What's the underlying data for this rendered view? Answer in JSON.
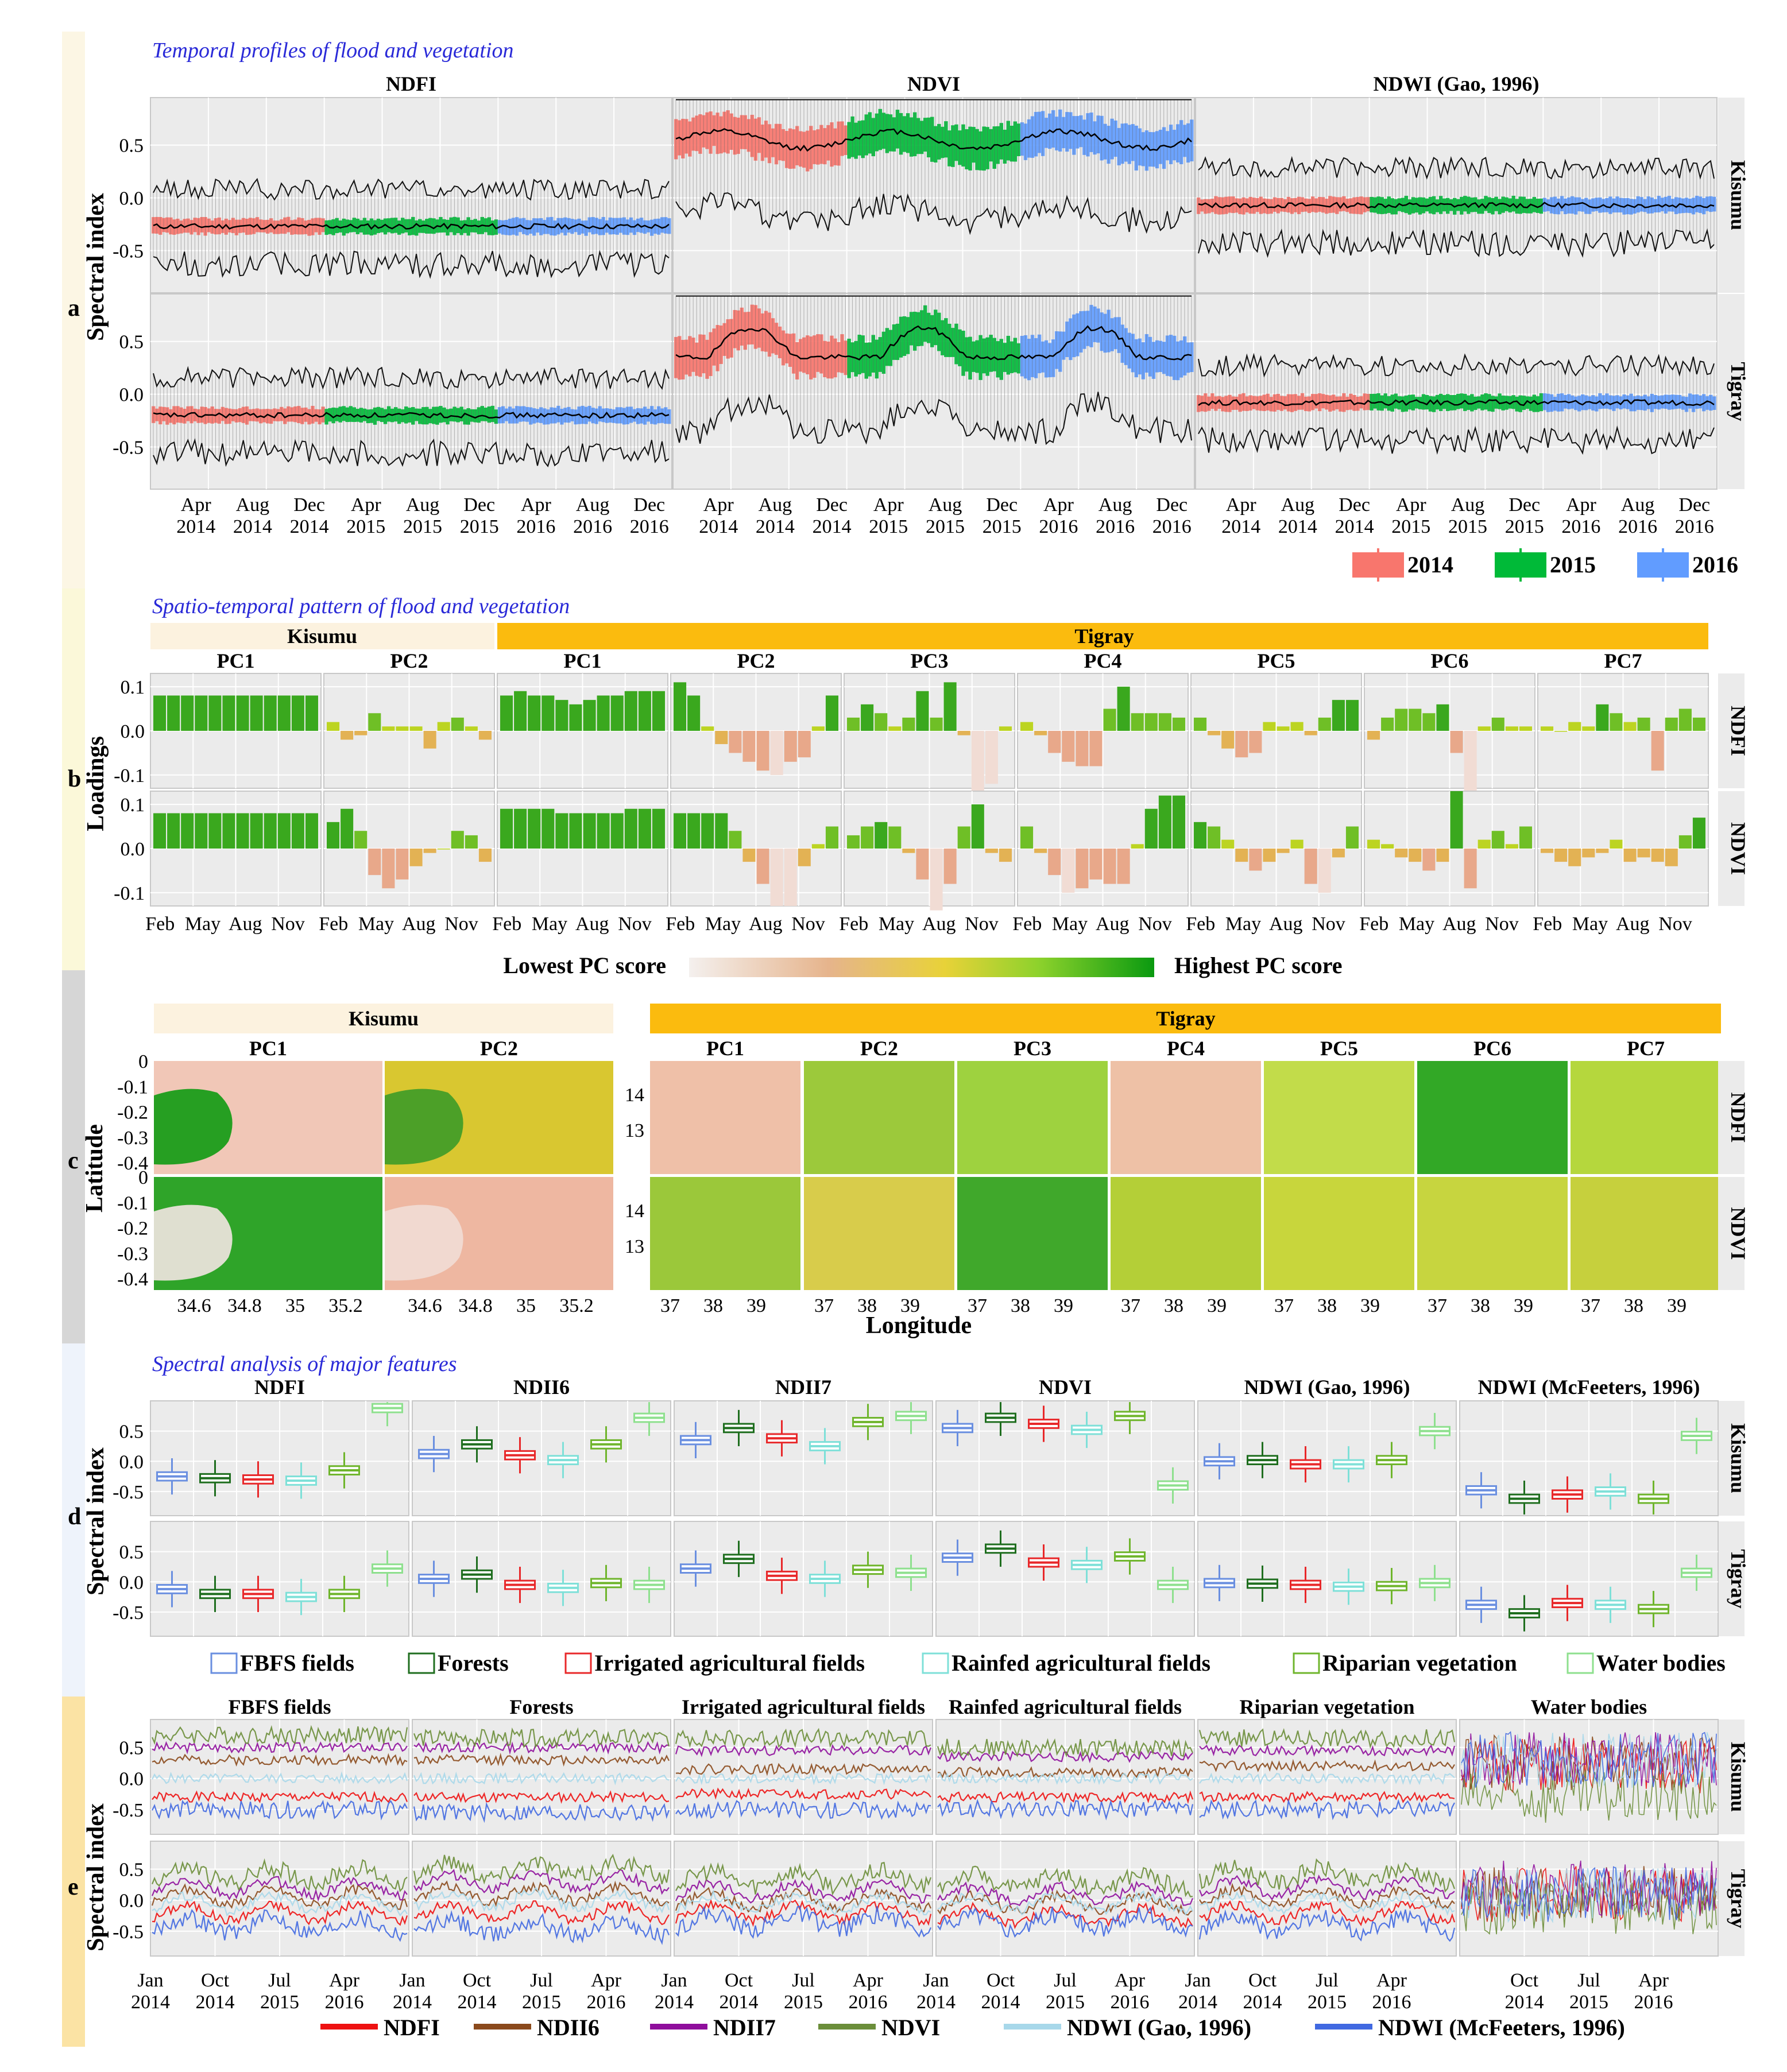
{
  "sections": {
    "a": {
      "letter": "a",
      "title": "Temporal profiles of flood and vegetation"
    },
    "b": {
      "letter": "b",
      "title": "Spatio-temporal pattern of flood and vegetation"
    },
    "c": {
      "letter": "c"
    },
    "d": {
      "letter": "d",
      "title": "Spectral analysis of major features"
    },
    "e": {
      "letter": "e"
    }
  },
  "labels": {
    "spectral_index": "Spectral index",
    "loadings": "Loadings",
    "latitude": "Latitude",
    "longitude": "Longitude",
    "lowest_pc": "Lowest PC score",
    "highest_pc": "Highest PC score",
    "kisumu": "Kisumu",
    "tigray": "Tigray"
  },
  "chart_data": [
    {
      "id": "a",
      "type": "line",
      "title": "Temporal profiles of flood and vegetation",
      "ylabel": "Spectral index",
      "panels": [
        "NDFI",
        "NDVI",
        "NDWI (Gao, 1996)"
      ],
      "rows": [
        "Kisumu",
        "Tigray"
      ],
      "x_ticks": [
        "Apr\n2014",
        "Aug\n2014",
        "Dec\n2014",
        "Apr\n2015",
        "Aug\n2015",
        "Dec\n2015",
        "Apr\n2016",
        "Aug\n2016",
        "Dec\n2016"
      ],
      "y_ticks": [
        0.5,
        0.0,
        -0.5
      ],
      "ylim": [
        -0.9,
        0.95
      ],
      "legend": [
        {
          "name": "2014",
          "color": "#f8766d"
        },
        {
          "name": "2015",
          "color": "#00ba38"
        },
        {
          "name": "2016",
          "color": "#619cff"
        }
      ],
      "median_levels": {
        "Kisumu": {
          "NDFI": -0.27,
          "NDVI": 0.55,
          "NDWI (Gao, 1996)": -0.07
        },
        "Tigray": {
          "NDFI": -0.2,
          "NDVI": 0.35,
          "NDWI (Gao, 1996)": -0.08
        }
      }
    },
    {
      "id": "b",
      "type": "bar",
      "title": "Spatio-temporal pattern of flood and vegetation",
      "ylabel": "Loadings",
      "groups": [
        {
          "name": "Kisumu",
          "pcs": [
            "PC1",
            "PC2"
          ]
        },
        {
          "name": "Tigray",
          "pcs": [
            "PC1",
            "PC2",
            "PC3",
            "PC4",
            "PC5",
            "PC6",
            "PC7"
          ]
        }
      ],
      "rows": [
        "NDFI",
        "NDVI"
      ],
      "x_ticks": [
        "Feb",
        "May",
        "Aug",
        "Nov"
      ],
      "y_ticks": [
        0.1,
        0.0,
        -0.1
      ],
      "ylim": [
        -0.13,
        0.13
      ],
      "series": [
        {
          "name": "Kisumu PC1 NDFI",
          "values": [
            0.08,
            0.08,
            0.08,
            0.08,
            0.08,
            0.08,
            0.08,
            0.08,
            0.08,
            0.08,
            0.08,
            0.08
          ]
        },
        {
          "name": "Kisumu PC2 NDFI",
          "values": [
            0.02,
            -0.02,
            -0.01,
            0.04,
            0.01,
            0.01,
            0.01,
            -0.04,
            0.02,
            0.03,
            0.01,
            -0.02
          ]
        },
        {
          "name": "Tigray PC1 NDFI",
          "values": [
            0.08,
            0.09,
            0.08,
            0.08,
            0.07,
            0.06,
            0.07,
            0.08,
            0.08,
            0.09,
            0.09,
            0.09
          ]
        },
        {
          "name": "Tigray PC2 NDFI",
          "values": [
            0.11,
            0.08,
            0.01,
            -0.03,
            -0.05,
            -0.07,
            -0.09,
            -0.1,
            -0.07,
            -0.06,
            0.01,
            0.08
          ]
        },
        {
          "name": "Tigray PC3 NDFI",
          "values": [
            0.03,
            0.06,
            0.04,
            0.01,
            0.03,
            0.09,
            0.03,
            0.11,
            -0.01,
            -0.14,
            -0.12,
            0.01
          ]
        },
        {
          "name": "Tigray PC4 NDFI",
          "values": [
            0.02,
            -0.01,
            -0.05,
            -0.07,
            -0.08,
            -0.08,
            0.05,
            0.1,
            0.04,
            0.04,
            0.04,
            0.03
          ]
        },
        {
          "name": "Tigray PC5 NDFI",
          "values": [
            0.03,
            -0.01,
            -0.04,
            -0.06,
            -0.05,
            0.02,
            0.01,
            0.02,
            -0.01,
            0.03,
            0.07,
            0.07
          ]
        },
        {
          "name": "Tigray PC6 NDFI",
          "values": [
            -0.02,
            0.03,
            0.05,
            0.05,
            0.04,
            0.06,
            -0.05,
            -0.14,
            0.01,
            0.03,
            0.01,
            0.01
          ]
        },
        {
          "name": "Tigray PC7 NDFI",
          "values": [
            0.01,
            0.0,
            0.02,
            0.01,
            0.06,
            0.04,
            0.02,
            0.03,
            -0.09,
            0.03,
            0.05,
            0.03
          ]
        },
        {
          "name": "Kisumu PC1 NDVI",
          "values": [
            0.08,
            0.08,
            0.08,
            0.08,
            0.08,
            0.08,
            0.08,
            0.08,
            0.08,
            0.08,
            0.08,
            0.08
          ]
        },
        {
          "name": "Kisumu PC2 NDVI",
          "values": [
            0.06,
            0.09,
            0.04,
            -0.06,
            -0.09,
            -0.07,
            -0.04,
            -0.01,
            0.0,
            0.04,
            0.03,
            -0.03
          ]
        },
        {
          "name": "Tigray PC1 NDVI",
          "values": [
            0.09,
            0.09,
            0.09,
            0.09,
            0.08,
            0.08,
            0.08,
            0.08,
            0.08,
            0.09,
            0.09,
            0.09
          ]
        },
        {
          "name": "Tigray PC2 NDVI",
          "values": [
            0.08,
            0.08,
            0.08,
            0.08,
            0.04,
            -0.03,
            -0.08,
            -0.13,
            -0.13,
            -0.04,
            0.01,
            0.05
          ]
        },
        {
          "name": "Tigray PC3 NDVI",
          "values": [
            0.03,
            0.05,
            0.06,
            0.05,
            -0.01,
            -0.07,
            -0.14,
            -0.08,
            0.05,
            0.1,
            -0.01,
            -0.03
          ]
        },
        {
          "name": "Tigray PC4 NDVI",
          "values": [
            0.05,
            -0.01,
            -0.06,
            -0.1,
            -0.09,
            -0.07,
            -0.08,
            -0.08,
            0.01,
            0.09,
            0.12,
            0.12
          ]
        },
        {
          "name": "Tigray PC5 NDVI",
          "values": [
            0.06,
            0.05,
            0.02,
            -0.03,
            -0.05,
            -0.03,
            -0.01,
            0.02,
            -0.08,
            -0.1,
            -0.02,
            0.05
          ]
        },
        {
          "name": "Tigray PC6 NDVI",
          "values": [
            0.02,
            0.01,
            -0.02,
            -0.03,
            -0.05,
            -0.03,
            0.13,
            -0.09,
            0.02,
            0.04,
            0.01,
            0.05
          ]
        },
        {
          "name": "Tigray PC7 NDVI",
          "values": [
            -0.01,
            -0.03,
            -0.04,
            -0.02,
            -0.01,
            0.02,
            -0.03,
            -0.02,
            -0.03,
            -0.04,
            0.03,
            0.07
          ]
        }
      ]
    },
    {
      "id": "c",
      "type": "heatmap",
      "xlabel": "Longitude",
      "ylabel": "Latitude",
      "colorbar": {
        "low": "Lowest PC score",
        "high": "Highest PC score",
        "colors": [
          "#f4f0ee",
          "#e6b48c",
          "#e8d238",
          "#8ed22c",
          "#0a9a10"
        ]
      },
      "kisumu": {
        "pcs": [
          "PC1",
          "PC2"
        ],
        "x_ticks": [
          "34.6",
          "34.8",
          "35",
          "35.2"
        ],
        "y_ticks": [
          "0",
          "-0.1",
          "-0.2",
          "-0.3",
          "-0.4"
        ]
      },
      "tigray": {
        "pcs": [
          "PC1",
          "PC2",
          "PC3",
          "PC4",
          "PC5",
          "PC6",
          "PC7"
        ],
        "x_ticks": [
          "37",
          "38",
          "39"
        ],
        "y_ticks": [
          "14",
          "13"
        ]
      },
      "rows": [
        "NDFI",
        "NDVI"
      ],
      "tile_colors": {
        "NDFI": [
          "#f1c7b7",
          "#d9c730",
          "#efc0a8",
          "#9cc93b",
          "#9ed23f",
          "#eec1a6",
          "#c2dc4a",
          "#32a826",
          "#b5d73d"
        ],
        "NDVI": [
          "#2fa429",
          "#eeb7a1",
          "#9bc83a",
          "#d8cc4b",
          "#40a82b",
          "#b4cf37",
          "#c8d63c",
          "#c7d53f",
          "#c6d03d"
        ]
      }
    },
    {
      "id": "d",
      "type": "box",
      "title": "Spectral analysis of major features",
      "ylabel": "Spectral index",
      "panels": [
        "NDFI",
        "NDII6",
        "NDII7",
        "NDVI",
        "NDWI (Gao, 1996)",
        "NDWI (McFeeters, 1996)"
      ],
      "rows": [
        "Kisumu",
        "Tigray"
      ],
      "y_ticks": [
        0.5,
        0.0,
        -0.5
      ],
      "ylim": [
        -0.9,
        1.0
      ],
      "legend": [
        {
          "name": "FBFS fields",
          "color": "#6a8fe0"
        },
        {
          "name": "Forests",
          "color": "#1f6e1f"
        },
        {
          "name": "Irrigated agricultural fields",
          "color": "#e8282a"
        },
        {
          "name": "Rainfed agricultural fields",
          "color": "#7ee0d8"
        },
        {
          "name": "Riparian vegetation",
          "color": "#6fb52c"
        },
        {
          "name": "Water bodies",
          "color": "#8ee08e"
        }
      ],
      "medians": {
        "Kisumu": [
          [
            -0.25,
            -0.28,
            -0.3,
            -0.32,
            -0.15,
            0.88
          ],
          [
            0.12,
            0.28,
            0.1,
            0.02,
            0.28,
            0.72
          ],
          [
            0.35,
            0.55,
            0.38,
            0.25,
            0.65,
            0.75
          ],
          [
            0.55,
            0.72,
            0.62,
            0.52,
            0.75,
            -0.4
          ],
          [
            0.0,
            0.02,
            -0.05,
            -0.05,
            0.02,
            0.5
          ],
          [
            -0.48,
            -0.62,
            -0.55,
            -0.5,
            -0.62,
            0.42
          ]
        ],
        "Tigray": [
          [
            -0.12,
            -0.2,
            -0.2,
            -0.25,
            -0.2,
            0.22
          ],
          [
            0.05,
            0.12,
            -0.05,
            -0.1,
            -0.02,
            -0.05
          ],
          [
            0.22,
            0.38,
            0.1,
            0.05,
            0.2,
            0.15
          ],
          [
            0.4,
            0.55,
            0.32,
            0.28,
            0.42,
            -0.05
          ],
          [
            -0.02,
            -0.03,
            -0.05,
            -0.08,
            -0.07,
            -0.02
          ],
          [
            -0.38,
            -0.52,
            -0.35,
            -0.38,
            -0.45,
            0.15
          ]
        ]
      }
    },
    {
      "id": "e",
      "type": "line",
      "ylabel": "Spectral index",
      "panels": [
        "FBFS fields",
        "Forests",
        "Irrigated agricultural fields",
        "Rainfed agricultural fields",
        "Riparian vegetation",
        "Water bodies"
      ],
      "rows": [
        "Kisumu",
        "Tigray"
      ],
      "x_ticks": [
        "Jan\n2014",
        "Oct\n2014",
        "Jul\n2015",
        "Apr\n2016"
      ],
      "y_ticks": [
        0.5,
        0.0,
        -0.5
      ],
      "ylim": [
        -0.9,
        0.95
      ],
      "legend": [
        {
          "name": "NDFI",
          "color": "#ee1111"
        },
        {
          "name": "NDII6",
          "color": "#8b4a1c"
        },
        {
          "name": "NDII7",
          "color": "#8f0e9c"
        },
        {
          "name": "NDVI",
          "color": "#6b8e3a"
        },
        {
          "name": "NDWI (Gao, 1996)",
          "color": "#a8d8ea"
        },
        {
          "name": "NDWI (McFeeters, 1996)",
          "color": "#4169e1"
        }
      ],
      "levels": {
        "Kisumu": [
          [
            -0.3,
            0.3,
            0.5,
            0.7,
            0.0,
            -0.5
          ],
          [
            -0.3,
            0.3,
            0.5,
            0.65,
            0.0,
            -0.55
          ],
          [
            -0.25,
            0.15,
            0.45,
            0.65,
            0.0,
            -0.5
          ],
          [
            -0.3,
            0.1,
            0.35,
            0.5,
            0.0,
            -0.5
          ],
          [
            -0.3,
            0.2,
            0.45,
            0.65,
            0.0,
            -0.5
          ],
          [
            0.2,
            0.25,
            0.3,
            -0.3,
            0.3,
            0.3
          ]
        ],
        "Tigray": [
          [
            -0.2,
            0.05,
            0.2,
            0.4,
            -0.05,
            -0.4
          ],
          [
            -0.2,
            0.1,
            0.3,
            0.5,
            0.0,
            -0.45
          ],
          [
            -0.2,
            0.0,
            0.15,
            0.35,
            -0.05,
            -0.35
          ],
          [
            -0.25,
            -0.05,
            0.1,
            0.3,
            -0.05,
            -0.35
          ],
          [
            -0.2,
            0.05,
            0.2,
            0.4,
            -0.05,
            -0.4
          ],
          [
            0.1,
            0.1,
            0.2,
            -0.1,
            0.1,
            0.1
          ]
        ]
      }
    }
  ]
}
